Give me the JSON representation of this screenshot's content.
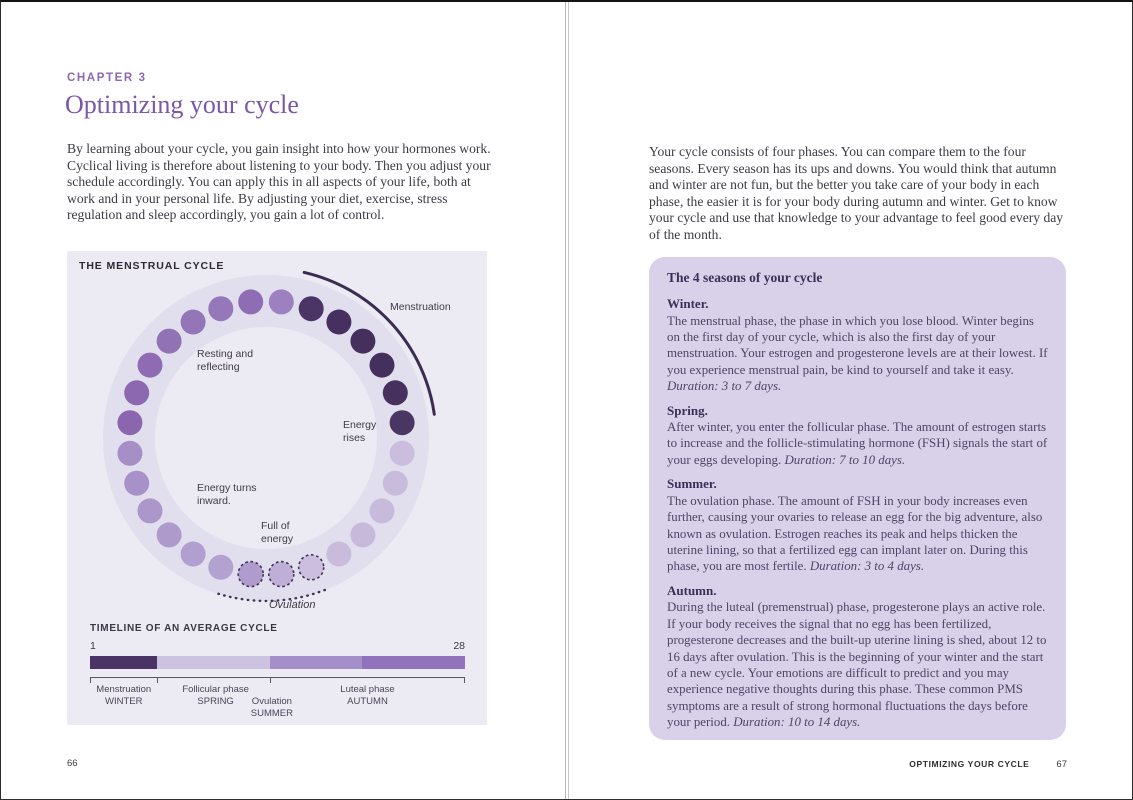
{
  "left_page": {
    "chapter_label": "CHAPTER 3",
    "title": "Optimizing your cycle",
    "intro": "By learning about your cycle, you gain insight into how your hormones work. Cyclical living is therefore about listening to your body. Then you adjust your schedule accordingly. You can apply this in all aspects of your life, both at work and in your personal life. By adjusting your diet, exercise, stress regulation and sleep accordingly, you gain a lot of control.",
    "page_number": "66",
    "diagram": {
      "title": "THE MENSTRUAL CYCLE",
      "background_color": "#eceaf3",
      "ring_color": "#e1deee",
      "labels": {
        "menstruation": "Menstruation",
        "resting": "Resting and\nreflecting",
        "energy_rises": "Energy\nrises",
        "energy_turns": "Energy turns\ninward.",
        "full_of_energy": "Full of\nenergy",
        "ovulation": "Ovulation"
      },
      "dots": [
        {
          "color": "#9d80c0",
          "dashed": false
        },
        {
          "color": "#4b3566",
          "dashed": false
        },
        {
          "color": "#46305f",
          "dashed": false
        },
        {
          "color": "#45305d",
          "dashed": false
        },
        {
          "color": "#44305c",
          "dashed": false
        },
        {
          "color": "#46315e",
          "dashed": false
        },
        {
          "color": "#4a3663",
          "dashed": false
        },
        {
          "color": "#cabddd",
          "dashed": false
        },
        {
          "color": "#c9bbdc",
          "dashed": false
        },
        {
          "color": "#c8badb",
          "dashed": false
        },
        {
          "color": "#c7b9da",
          "dashed": false
        },
        {
          "color": "#c9bbdc",
          "dashed": false
        },
        {
          "color": "#cbbede",
          "dashed": true
        },
        {
          "color": "#bfaed6",
          "dashed": true
        },
        {
          "color": "#af9bcd",
          "dashed": true
        },
        {
          "color": "#b3a2d0",
          "dashed": false
        },
        {
          "color": "#b19fcf",
          "dashed": false
        },
        {
          "color": "#ae9bcc",
          "dashed": false
        },
        {
          "color": "#ab97ca",
          "dashed": false
        },
        {
          "color": "#a891c8",
          "dashed": false
        },
        {
          "color": "#a68fc6",
          "dashed": false
        },
        {
          "color": "#8b66af",
          "dashed": false
        },
        {
          "color": "#8c68b0",
          "dashed": false
        },
        {
          "color": "#8e6bb2",
          "dashed": false
        },
        {
          "color": "#9072b5",
          "dashed": false
        },
        {
          "color": "#9375b8",
          "dashed": false
        },
        {
          "color": "#9577ba",
          "dashed": false
        },
        {
          "color": "#8f6db4",
          "dashed": false
        }
      ],
      "timeline": {
        "title": "TIMELINE OF AN AVERAGE CYCLE",
        "start_day": "1",
        "end_day": "28",
        "segments": [
          {
            "label": "Menstruation",
            "season": "WINTER",
            "color": "#4a3466",
            "width_pct": 17.8
          },
          {
            "label": "Follicular phase",
            "season": "SPRING",
            "color": "#cdc3e0",
            "width_pct": 30.3
          },
          {
            "label": "Ovulation",
            "season": "SUMMER",
            "color": "#a58fc8",
            "width_pct": 24.4
          },
          {
            "label": "Luteal phase",
            "season": "AUTUMN",
            "color": "#9173bb",
            "width_pct": 27.5
          }
        ]
      }
    }
  },
  "right_page": {
    "intro": "Your cycle consists of four phases. You can compare them to the four seasons. Every season has its ups and downs. You would think that autumn and winter are not fun, but the better you take care of your body in each phase, the easier it is for your body during autumn and winter. Get to know your cycle and use that knowledge to your advantage to feel good every day of the month.",
    "box": {
      "title": "The 4 seasons of your cycle",
      "background_color": "#d9d1e9",
      "seasons": [
        {
          "heading": "Winter.",
          "body": "The menstrual phase, the phase in which you lose blood. Winter begins on the first day of your cycle, which is also the first day of your menstruation. Your estrogen and progesterone levels are at their lowest. If you experience menstrual pain, be kind to yourself and take it easy. ",
          "duration": "Duration: 3 to 7 days."
        },
        {
          "heading": "Spring.",
          "body": "After winter, you enter the follicular phase. The amount of estrogen starts to increase and the follicle-stimulating hormone (FSH) signals the start of your eggs developing. ",
          "duration": "Duration: 7 to 10 days."
        },
        {
          "heading": "Summer.",
          "body": "The ovulation phase. The amount of FSH in your body increases even further, causing your ovaries to release an egg for the big adventure, also known as ovulation. Estrogen reaches its peak and helps thicken the uterine lining, so that a fertilized egg can implant later on. During this phase, you are most fertile. ",
          "duration": "Duration: 3 to 4 days."
        },
        {
          "heading": "Autumn.",
          "body": "During the luteal (premenstrual) phase, progesterone plays an active role. If your body receives the signal that no egg has been fertilized, progesterone decreases and the built-up uterine lining is shed, about 12 to 16 days after ovulation. This is the beginning of your winter and the start of a new cycle. Your emotions are difficult to predict and you may experience negative thoughts during this phase. These common PMS symptoms are a result of strong hormonal fluctuations the days before your period. ",
          "duration": "Duration: 10 to 14 days."
        }
      ]
    },
    "running_head": "OPTIMIZING YOUR CYCLE",
    "page_number": "67"
  }
}
